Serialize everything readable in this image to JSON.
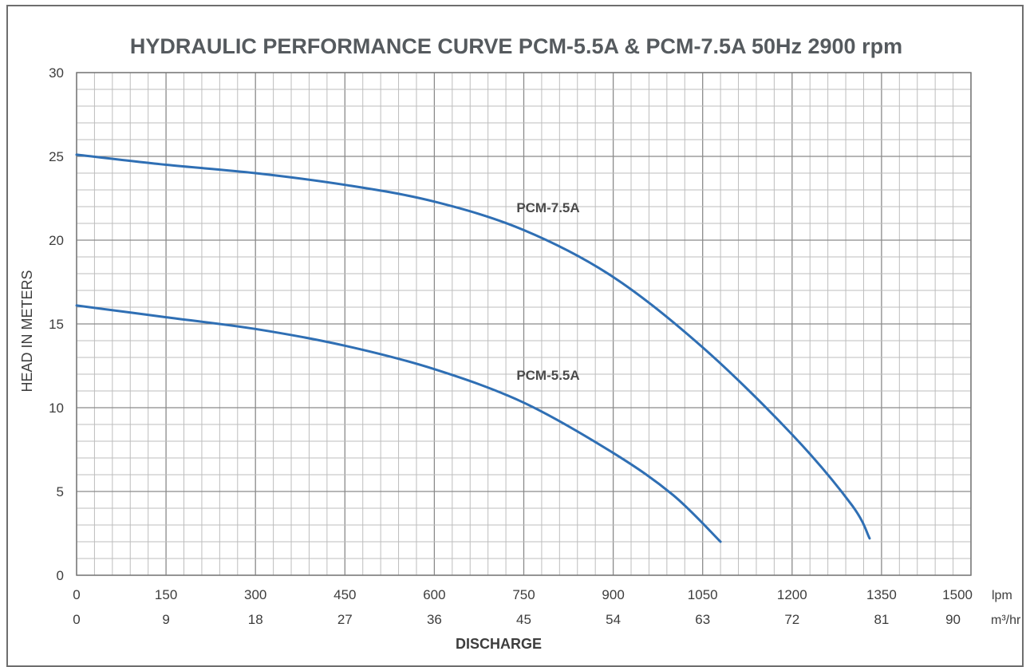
{
  "chart_data": {
    "type": "line",
    "title": "HYDRAULIC PERFORMANCE CURVE PCM-5.5A & PCM-7.5A 50Hz 2900 rpm",
    "xlabel": "DISCHARGE",
    "ylabel": "HEAD IN METERS",
    "x_unit_primary": "lpm",
    "x_unit_secondary": "m³/hr",
    "xlim": [
      0,
      1500
    ],
    "ylim": [
      0,
      30
    ],
    "x_ticks_primary": [
      "0",
      "150",
      "300",
      "450",
      "600",
      "750",
      "900",
      "1050",
      "1200",
      "1350",
      "1500"
    ],
    "x_ticks_secondary": [
      "0",
      "9",
      "18",
      "27",
      "36",
      "45",
      "54",
      "63",
      "72",
      "81",
      "90"
    ],
    "y_ticks": [
      "0",
      "5",
      "10",
      "15",
      "20",
      "25",
      "30"
    ],
    "grid": true,
    "series": [
      {
        "name": "PCM-7.5A",
        "color": "#2f6fb4",
        "points": [
          [
            0,
            25.1
          ],
          [
            150,
            24.5
          ],
          [
            300,
            24.0
          ],
          [
            450,
            23.3
          ],
          [
            600,
            22.3
          ],
          [
            750,
            20.6
          ],
          [
            900,
            17.8
          ],
          [
            1050,
            13.6
          ],
          [
            1200,
            8.4
          ],
          [
            1300,
            4.2
          ],
          [
            1330,
            2.2
          ]
        ]
      },
      {
        "name": "PCM-5.5A",
        "color": "#2f6fb4",
        "points": [
          [
            0,
            16.1
          ],
          [
            150,
            15.4
          ],
          [
            300,
            14.7
          ],
          [
            450,
            13.7
          ],
          [
            600,
            12.3
          ],
          [
            750,
            10.3
          ],
          [
            900,
            7.3
          ],
          [
            1000,
            4.8
          ],
          [
            1080,
            2.0
          ]
        ]
      }
    ]
  }
}
